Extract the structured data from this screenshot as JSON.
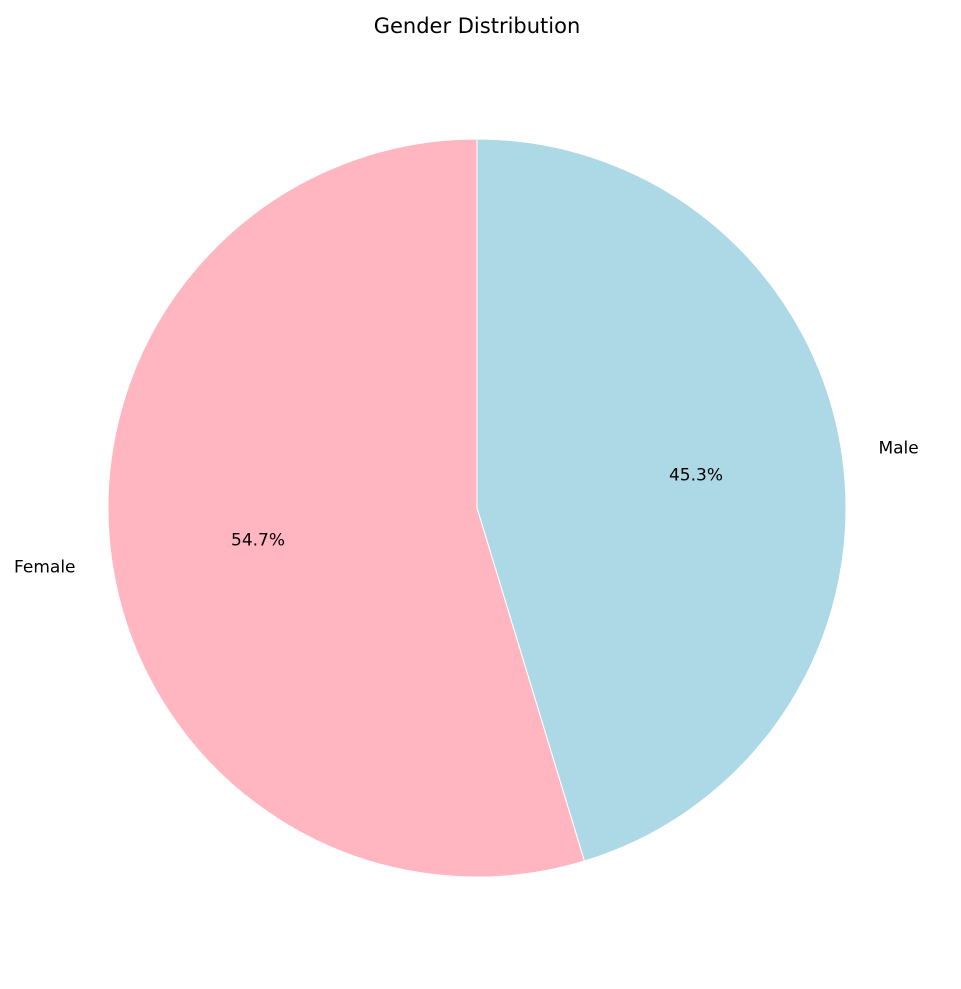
{
  "chart_data": {
    "type": "pie",
    "title": "Gender Distribution",
    "start_angle_deg": 90,
    "direction": "clockwise",
    "slices": [
      {
        "label": "Male",
        "value": 45.3,
        "pct_label": "45.3%",
        "color": "#add8e6"
      },
      {
        "label": "Female",
        "value": 54.7,
        "pct_label": "54.7%",
        "color": "#ffb6c1"
      }
    ]
  }
}
